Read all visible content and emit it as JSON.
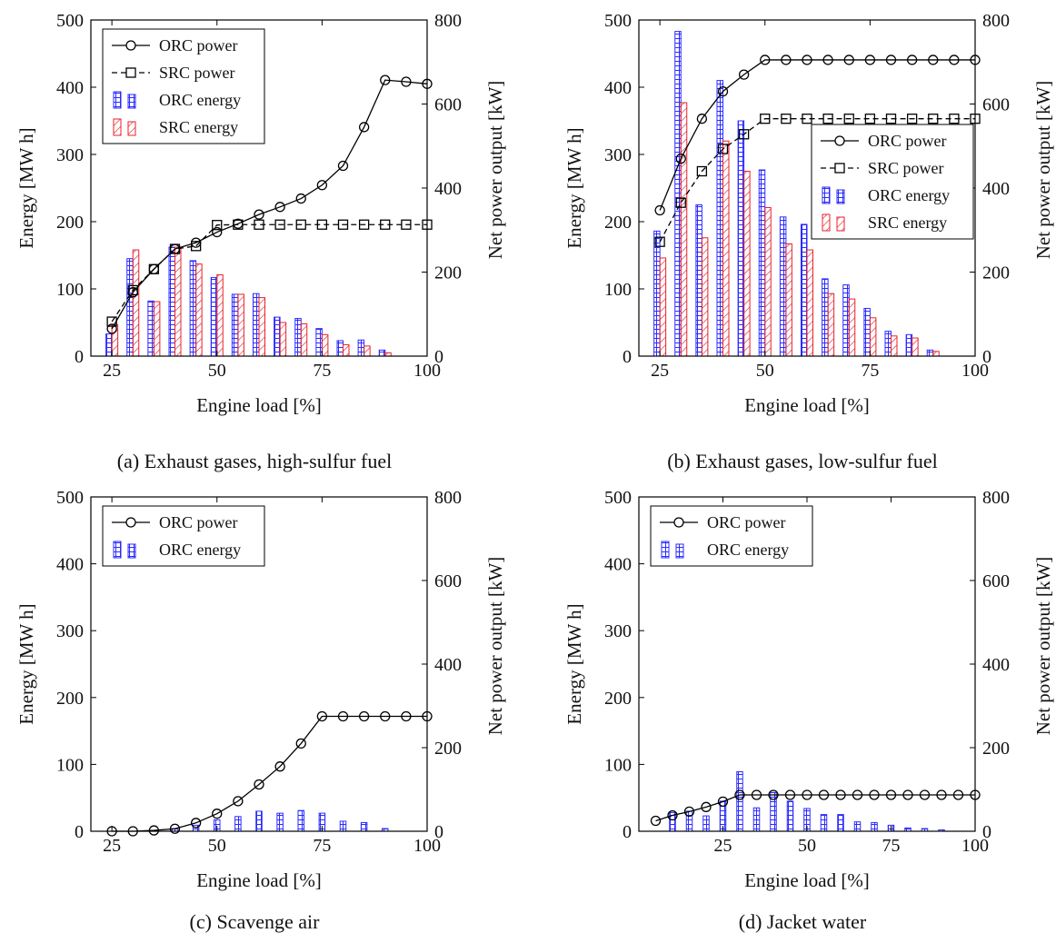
{
  "figure": {
    "colors": {
      "orc": "#2b2bff",
      "src": "#e8202a",
      "line": "#000000"
    }
  },
  "chart_data": [
    {
      "type": "bar",
      "caption": "(a) Exhaust gases, high-sulfur fuel",
      "xlabel": "Engine load [%]",
      "ylabel": "Energy [MW h]",
      "y2label": "Net power output [kW]",
      "xlim": [
        20,
        100
      ],
      "ylim": [
        0,
        500
      ],
      "y2lim": [
        0,
        800
      ],
      "xticks": [
        25,
        50,
        75,
        100
      ],
      "yticks": [
        0,
        100,
        200,
        300,
        400,
        500
      ],
      "y2ticks": [
        0,
        200,
        400,
        600,
        800
      ],
      "legend_labels": [
        "ORC power",
        "SRC power",
        "ORC energy",
        "SRC energy"
      ],
      "legend_position": "top-left",
      "x": [
        25,
        30,
        35,
        40,
        45,
        50,
        55,
        60,
        65,
        70,
        75,
        80,
        85,
        90,
        95,
        100
      ],
      "bar_series": [
        {
          "name": "ORC energy",
          "values": [
            33,
            145,
            82,
            162,
            142,
            117,
            92,
            93,
            58,
            56,
            41,
            23,
            24,
            9,
            0,
            0
          ]
        },
        {
          "name": "SRC energy",
          "values": [
            47,
            158,
            81,
            162,
            137,
            121,
            92,
            87,
            50,
            48,
            32,
            17,
            15,
            5,
            0,
            0
          ]
        }
      ],
      "line_series": [
        {
          "name": "ORC power",
          "marker": "circle",
          "dash": false,
          "values": [
            65,
            152,
            207,
            255,
            270,
            295,
            315,
            337,
            355,
            375,
            407,
            453,
            545,
            657,
            653,
            648
          ]
        },
        {
          "name": "SRC power",
          "marker": "square",
          "dash": true,
          "values": [
            82,
            157,
            207,
            255,
            262,
            312,
            313,
            313,
            313,
            313,
            313,
            313,
            313,
            313,
            313,
            313
          ]
        }
      ]
    },
    {
      "type": "bar",
      "caption": "(b) Exhaust gases, low-sulfur fuel",
      "xlabel": "Engine load [%]",
      "ylabel": "Energy [MW h]",
      "y2label": "Net power output [kW]",
      "xlim": [
        20,
        100
      ],
      "ylim": [
        0,
        500
      ],
      "y2lim": [
        0,
        800
      ],
      "xticks": [
        25,
        50,
        75,
        100
      ],
      "yticks": [
        0,
        100,
        200,
        300,
        400,
        500
      ],
      "y2ticks": [
        0,
        200,
        400,
        600,
        800
      ],
      "legend_labels": [
        "ORC power",
        "SRC power",
        "ORC energy",
        "SRC energy"
      ],
      "legend_position": "center-right",
      "x": [
        25,
        30,
        35,
        40,
        45,
        50,
        55,
        60,
        65,
        70,
        75,
        80,
        85,
        90,
        95,
        100
      ],
      "bar_series": [
        {
          "name": "ORC energy",
          "values": [
            186,
            483,
            225,
            410,
            350,
            277,
            207,
            196,
            115,
            106,
            71,
            37,
            32,
            9,
            0,
            0
          ]
        },
        {
          "name": "SRC energy",
          "values": [
            146,
            377,
            176,
            320,
            275,
            221,
            167,
            158,
            93,
            85,
            57,
            30,
            27,
            7,
            0,
            0
          ]
        }
      ],
      "line_series": [
        {
          "name": "ORC power",
          "marker": "circle",
          "dash": false,
          "values": [
            347,
            470,
            565,
            630,
            670,
            705,
            705,
            705,
            705,
            705,
            705,
            705,
            705,
            705,
            705,
            705
          ]
        },
        {
          "name": "SRC power",
          "marker": "square",
          "dash": true,
          "values": [
            272,
            365,
            440,
            493,
            528,
            565,
            565,
            565,
            565,
            565,
            565,
            565,
            565,
            565,
            565,
            565
          ]
        }
      ]
    },
    {
      "type": "bar",
      "caption": "(c) Scavenge air",
      "xlabel": "Engine load [%]",
      "ylabel": "Energy [MW h]",
      "y2label": "Net power output [kW]",
      "xlim": [
        20,
        100
      ],
      "ylim": [
        0,
        500
      ],
      "y2lim": [
        0,
        800
      ],
      "xticks": [
        25,
        50,
        75,
        100
      ],
      "yticks": [
        0,
        100,
        200,
        300,
        400,
        500
      ],
      "y2ticks": [
        0,
        200,
        400,
        600,
        800
      ],
      "legend_labels": [
        "ORC power",
        "ORC energy"
      ],
      "legend_position": "top-left",
      "x": [
        25,
        30,
        35,
        40,
        45,
        50,
        55,
        60,
        65,
        70,
        75,
        80,
        85,
        90,
        95,
        100
      ],
      "bar_series": [
        {
          "name": "ORC energy",
          "values": [
            0,
            0,
            1,
            4,
            9,
            17,
            22,
            30,
            27,
            31,
            27,
            15,
            13,
            4,
            0,
            0
          ]
        }
      ],
      "line_series": [
        {
          "name": "ORC power",
          "marker": "circle",
          "dash": false,
          "values": [
            0,
            0,
            2,
            6,
            20,
            42,
            72,
            112,
            155,
            210,
            275,
            275,
            275,
            275,
            275,
            275
          ]
        }
      ]
    },
    {
      "type": "bar",
      "caption": "(d) Jacket water",
      "xlabel": "Engine load [%]",
      "ylabel": "Energy [MW h]",
      "y2label": "Net power output [kW]",
      "xlim": [
        0,
        100
      ],
      "ylim": [
        0,
        500
      ],
      "y2lim": [
        0,
        800
      ],
      "xticks": [
        25,
        50,
        75,
        100
      ],
      "yticks": [
        0,
        100,
        200,
        300,
        400,
        500
      ],
      "y2ticks": [
        0,
        200,
        400,
        600,
        800
      ],
      "legend_labels": [
        "ORC power",
        "ORC energy"
      ],
      "legend_position": "top-left",
      "x": [
        5,
        10,
        15,
        20,
        25,
        30,
        35,
        40,
        45,
        50,
        55,
        60,
        65,
        70,
        75,
        80,
        85,
        90,
        95,
        100
      ],
      "bar_series": [
        {
          "name": "ORC energy",
          "values": [
            0,
            28,
            30,
            23,
            45,
            89,
            35,
            58,
            45,
            34,
            25,
            25,
            14,
            13,
            9,
            5,
            4,
            2,
            0,
            0
          ]
        }
      ],
      "line_series": [
        {
          "name": "ORC power",
          "marker": "circle",
          "dash": false,
          "values": [
            25,
            38,
            47,
            58,
            71,
            87,
            87,
            87,
            87,
            87,
            87,
            87,
            87,
            87,
            87,
            87,
            87,
            87,
            87,
            87
          ]
        }
      ]
    }
  ]
}
